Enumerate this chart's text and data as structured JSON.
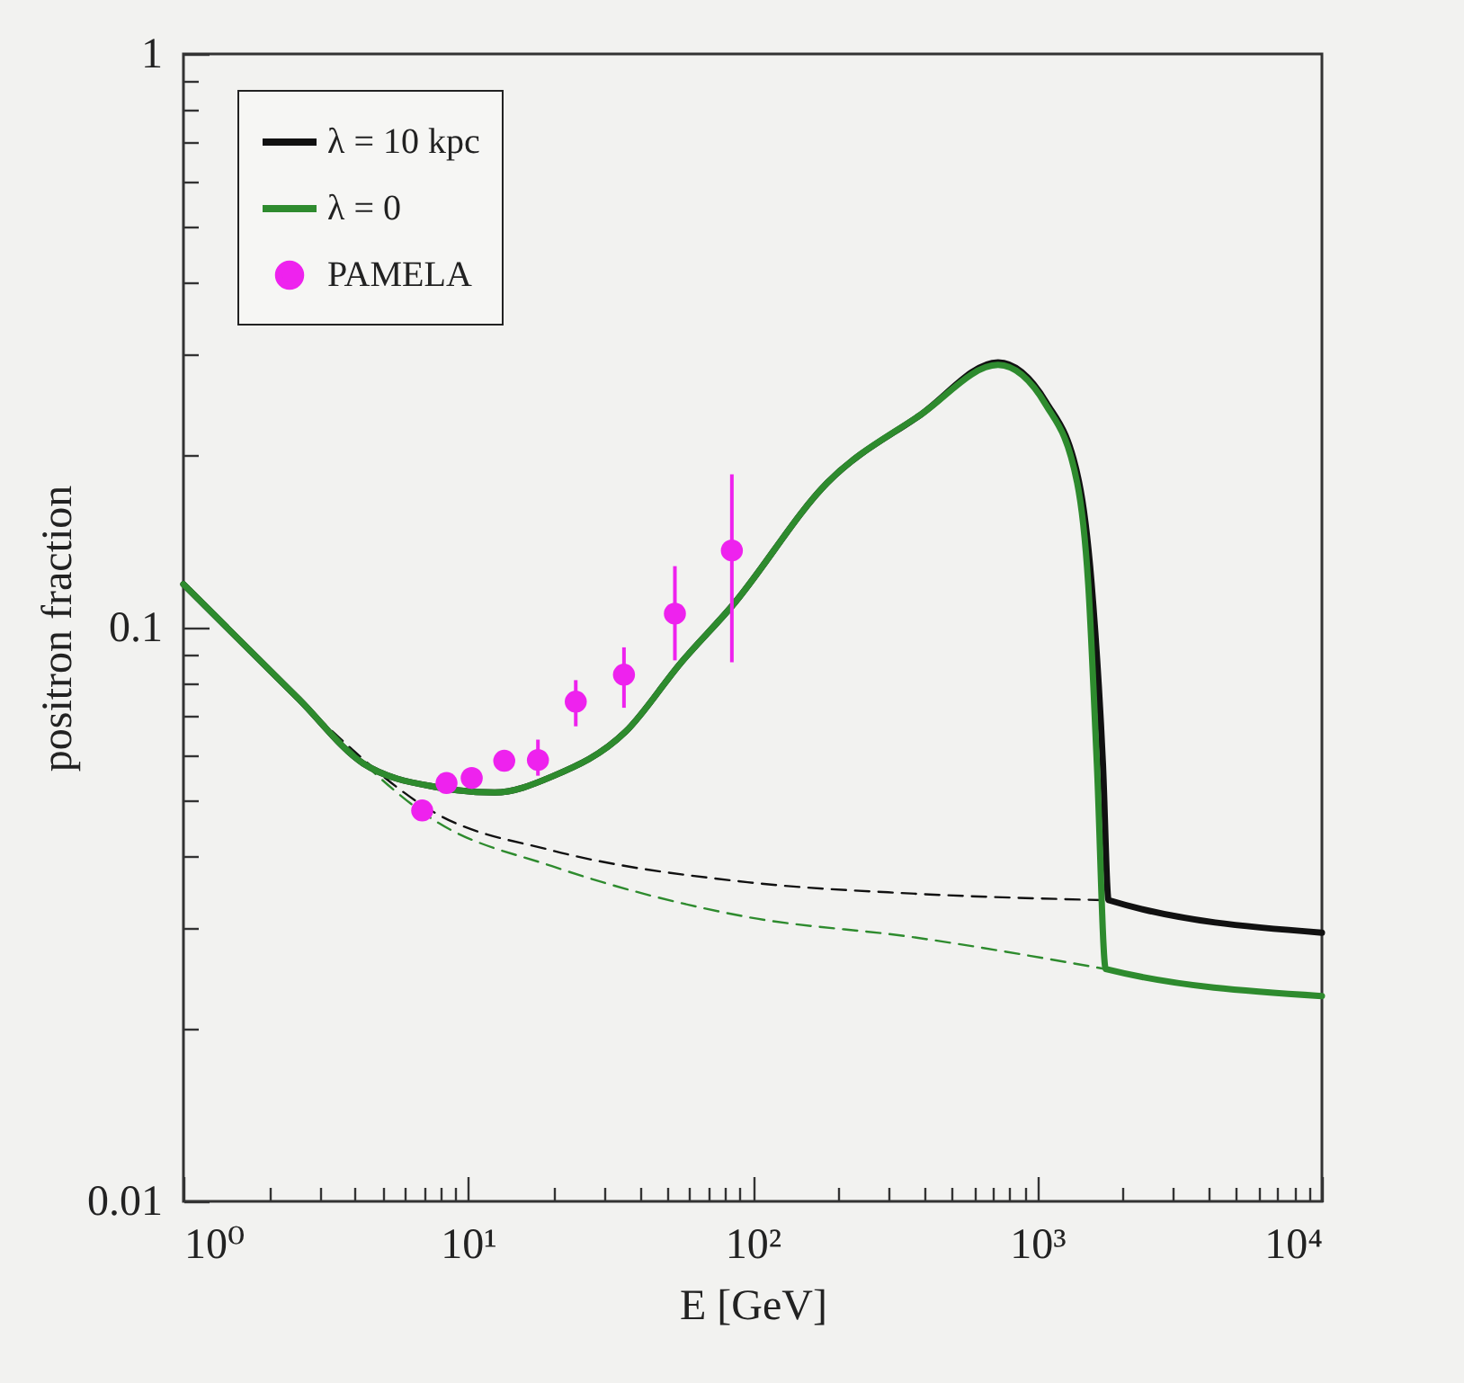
{
  "chart_data": {
    "type": "line",
    "xlabel": "E [GeV]",
    "ylabel": "positron fraction",
    "log": "xy",
    "grid": false,
    "legend": "top left",
    "xlim": [
      1,
      10000
    ],
    "ylim": [
      0.01,
      1
    ],
    "xticks": [
      {
        "value": 1,
        "label": "10⁰"
      },
      {
        "value": 2,
        "label": null
      },
      {
        "value": 3,
        "label": null
      },
      {
        "value": 4,
        "label": null
      },
      {
        "value": 5,
        "label": null
      },
      {
        "value": 6,
        "label": null
      },
      {
        "value": 7,
        "label": null
      },
      {
        "value": 8,
        "label": null
      },
      {
        "value": 9,
        "label": null
      },
      {
        "value": 10,
        "label": "10¹"
      },
      {
        "value": 20,
        "label": null
      },
      {
        "value": 30,
        "label": null
      },
      {
        "value": 40,
        "label": null
      },
      {
        "value": 50,
        "label": null
      },
      {
        "value": 60,
        "label": null
      },
      {
        "value": 70,
        "label": null
      },
      {
        "value": 80,
        "label": null
      },
      {
        "value": 90,
        "label": null
      },
      {
        "value": 100,
        "label": "10²"
      },
      {
        "value": 200,
        "label": null
      },
      {
        "value": 300,
        "label": null
      },
      {
        "value": 400,
        "label": null
      },
      {
        "value": 500,
        "label": null
      },
      {
        "value": 600,
        "label": null
      },
      {
        "value": 700,
        "label": null
      },
      {
        "value": 800,
        "label": null
      },
      {
        "value": 900,
        "label": null
      },
      {
        "value": 1000,
        "label": "10³"
      },
      {
        "value": 2000,
        "label": null
      },
      {
        "value": 3000,
        "label": null
      },
      {
        "value": 4000,
        "label": null
      },
      {
        "value": 5000,
        "label": null
      },
      {
        "value": 6000,
        "label": null
      },
      {
        "value": 7000,
        "label": null
      },
      {
        "value": 8000,
        "label": null
      },
      {
        "value": 9000,
        "label": null
      },
      {
        "value": 10000,
        "label": "10⁴"
      }
    ],
    "yticks": [
      0.01,
      {
        "value": 0.02,
        "label": null
      },
      {
        "value": 0.03,
        "label": null
      },
      {
        "value": 0.04,
        "label": null
      },
      {
        "value": 0.05,
        "label": null
      },
      {
        "value": 0.06,
        "label": null
      },
      {
        "value": 0.07,
        "label": null
      },
      {
        "value": 0.08,
        "label": null
      },
      {
        "value": 0.09,
        "label": null
      },
      0.1,
      {
        "value": 0.2,
        "label": null
      },
      {
        "value": 0.3,
        "label": null
      },
      {
        "value": 0.4,
        "label": null
      },
      {
        "value": 0.5,
        "label": null
      },
      {
        "value": 0.6,
        "label": null
      },
      {
        "value": 0.7,
        "label": null
      },
      {
        "value": 0.8,
        "label": null
      },
      {
        "value": 0.9,
        "label": null
      },
      1
    ],
    "series": [
      {
        "color": "#111111",
        "line_style": "dashed",
        "x": [
          2.9,
          7.8,
          19.7,
          96,
          361,
          1715
        ],
        "values": [
          0.0704,
          0.0473,
          0.0409,
          0.036,
          0.0344,
          0.0335
        ]
      },
      {
        "color": "#2e8b2e",
        "line_style": "dashed",
        "x": [
          2.9,
          7.8,
          19.7,
          96,
          361,
          1740
        ],
        "values": [
          0.0704,
          0.0458,
          0.0384,
          0.0313,
          0.0289,
          0.0254
        ]
      },
      {
        "name": "λ = 10 kpc",
        "color": "#111111",
        "line_style": "solid",
        "x": [
          1,
          2.54,
          4.28,
          7.8,
          12.4,
          19.7,
          35.8,
          56,
          84.5,
          183,
          389,
          728,
          1075,
          1400,
          1550,
          1700,
          1780,
          10000
        ],
        "values": [
          0.119,
          0.0751,
          0.058,
          0.0527,
          0.0516,
          0.055,
          0.0659,
          0.0869,
          0.109,
          0.179,
          0.235,
          0.29,
          0.247,
          0.18,
          0.12,
          0.058,
          0.0335,
          0.0294
        ]
      },
      {
        "name": "λ = 0",
        "color": "#2e8b2e",
        "line_style": "solid",
        "x": [
          1,
          2.54,
          4.28,
          7.8,
          12.4,
          19.7,
          35.8,
          56,
          84.5,
          183,
          389,
          728,
          1075,
          1380,
          1510,
          1620,
          1740,
          10000
        ],
        "values": [
          0.119,
          0.0751,
          0.058,
          0.0527,
          0.0516,
          0.055,
          0.0659,
          0.0869,
          0.109,
          0.179,
          0.235,
          0.287,
          0.244,
          0.179,
          0.119,
          0.0576,
          0.0254,
          0.0228
        ]
      },
      {
        "type": "scatter",
        "name": "PAMELA",
        "color": "#ee22ee",
        "x": [
          6.9,
          8.4,
          10.3,
          13.4,
          17.6,
          23.9,
          35.3,
          53.3,
          84.5
        ],
        "values": [
          0.048,
          0.0536,
          0.0547,
          0.0586,
          0.0588,
          0.0743,
          0.0828,
          0.1058,
          0.1363
        ],
        "errors": [
          null,
          null,
          null,
          null,
          [
            0.0552,
            0.0638
          ],
          [
            0.0673,
            0.081
          ],
          [
            0.0725,
            0.0924
          ],
          [
            0.0877,
            0.128
          ],
          [
            0.087,
            0.185
          ]
        ]
      }
    ]
  }
}
